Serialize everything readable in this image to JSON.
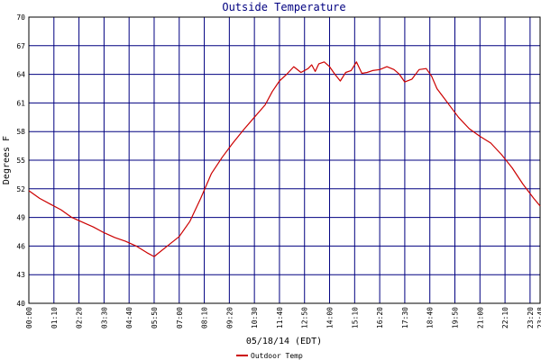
{
  "chart_data": {
    "type": "line",
    "title": "Outside Temperature",
    "ylabel": "Degrees F",
    "xlabel": "05/18/14 (EDT)",
    "ylim": [
      40,
      70
    ],
    "yticks": [
      40,
      43,
      46,
      49,
      52,
      55,
      58,
      61,
      64,
      67,
      70
    ],
    "xticks": [
      "00:00",
      "01:10",
      "02:20",
      "03:30",
      "04:40",
      "05:50",
      "07:00",
      "08:10",
      "09:20",
      "10:30",
      "11:40",
      "12:50",
      "14:00",
      "15:10",
      "16:20",
      "17:30",
      "18:40",
      "19:50",
      "21:00",
      "22:10",
      "23:20",
      "23:48"
    ],
    "grid": true,
    "legend": "bottom-left",
    "colors": {
      "line": "#cc0000",
      "grid": "#000080",
      "frame": "#000000"
    },
    "series": [
      {
        "name": "Outdoor Temp",
        "x": [
          "00:00",
          "00:30",
          "01:00",
          "01:30",
          "02:00",
          "02:30",
          "03:00",
          "03:30",
          "04:00",
          "04:30",
          "05:00",
          "05:30",
          "05:50",
          "06:00",
          "06:30",
          "07:00",
          "07:30",
          "08:00",
          "08:30",
          "09:00",
          "09:30",
          "10:00",
          "10:30",
          "11:00",
          "11:20",
          "11:40",
          "12:00",
          "12:20",
          "12:40",
          "13:00",
          "13:10",
          "13:20",
          "13:30",
          "13:45",
          "14:00",
          "14:15",
          "14:30",
          "14:45",
          "15:00",
          "15:15",
          "15:30",
          "15:45",
          "16:00",
          "16:20",
          "16:40",
          "17:00",
          "17:15",
          "17:30",
          "17:50",
          "18:10",
          "18:30",
          "18:45",
          "19:00",
          "19:20",
          "19:40",
          "20:00",
          "20:30",
          "21:00",
          "21:30",
          "22:00",
          "22:30",
          "23:00",
          "23:30",
          "23:48"
        ],
        "values": [
          51.8,
          51.0,
          50.4,
          49.8,
          49.0,
          48.5,
          48.0,
          47.4,
          46.9,
          46.5,
          46.0,
          45.3,
          44.9,
          45.2,
          46.1,
          47.0,
          48.6,
          51.0,
          53.6,
          55.3,
          56.8,
          58.2,
          59.5,
          60.8,
          62.2,
          63.3,
          64.0,
          64.8,
          64.2,
          64.6,
          65.0,
          64.3,
          65.1,
          65.3,
          64.8,
          64.0,
          63.3,
          64.2,
          64.4,
          65.3,
          64.1,
          64.2,
          64.4,
          64.5,
          64.8,
          64.5,
          64.0,
          63.2,
          63.5,
          64.5,
          64.6,
          63.8,
          62.5,
          61.5,
          60.5,
          59.5,
          58.3,
          57.5,
          56.8,
          55.6,
          54.2,
          52.5,
          51.0,
          50.2
        ]
      }
    ]
  }
}
